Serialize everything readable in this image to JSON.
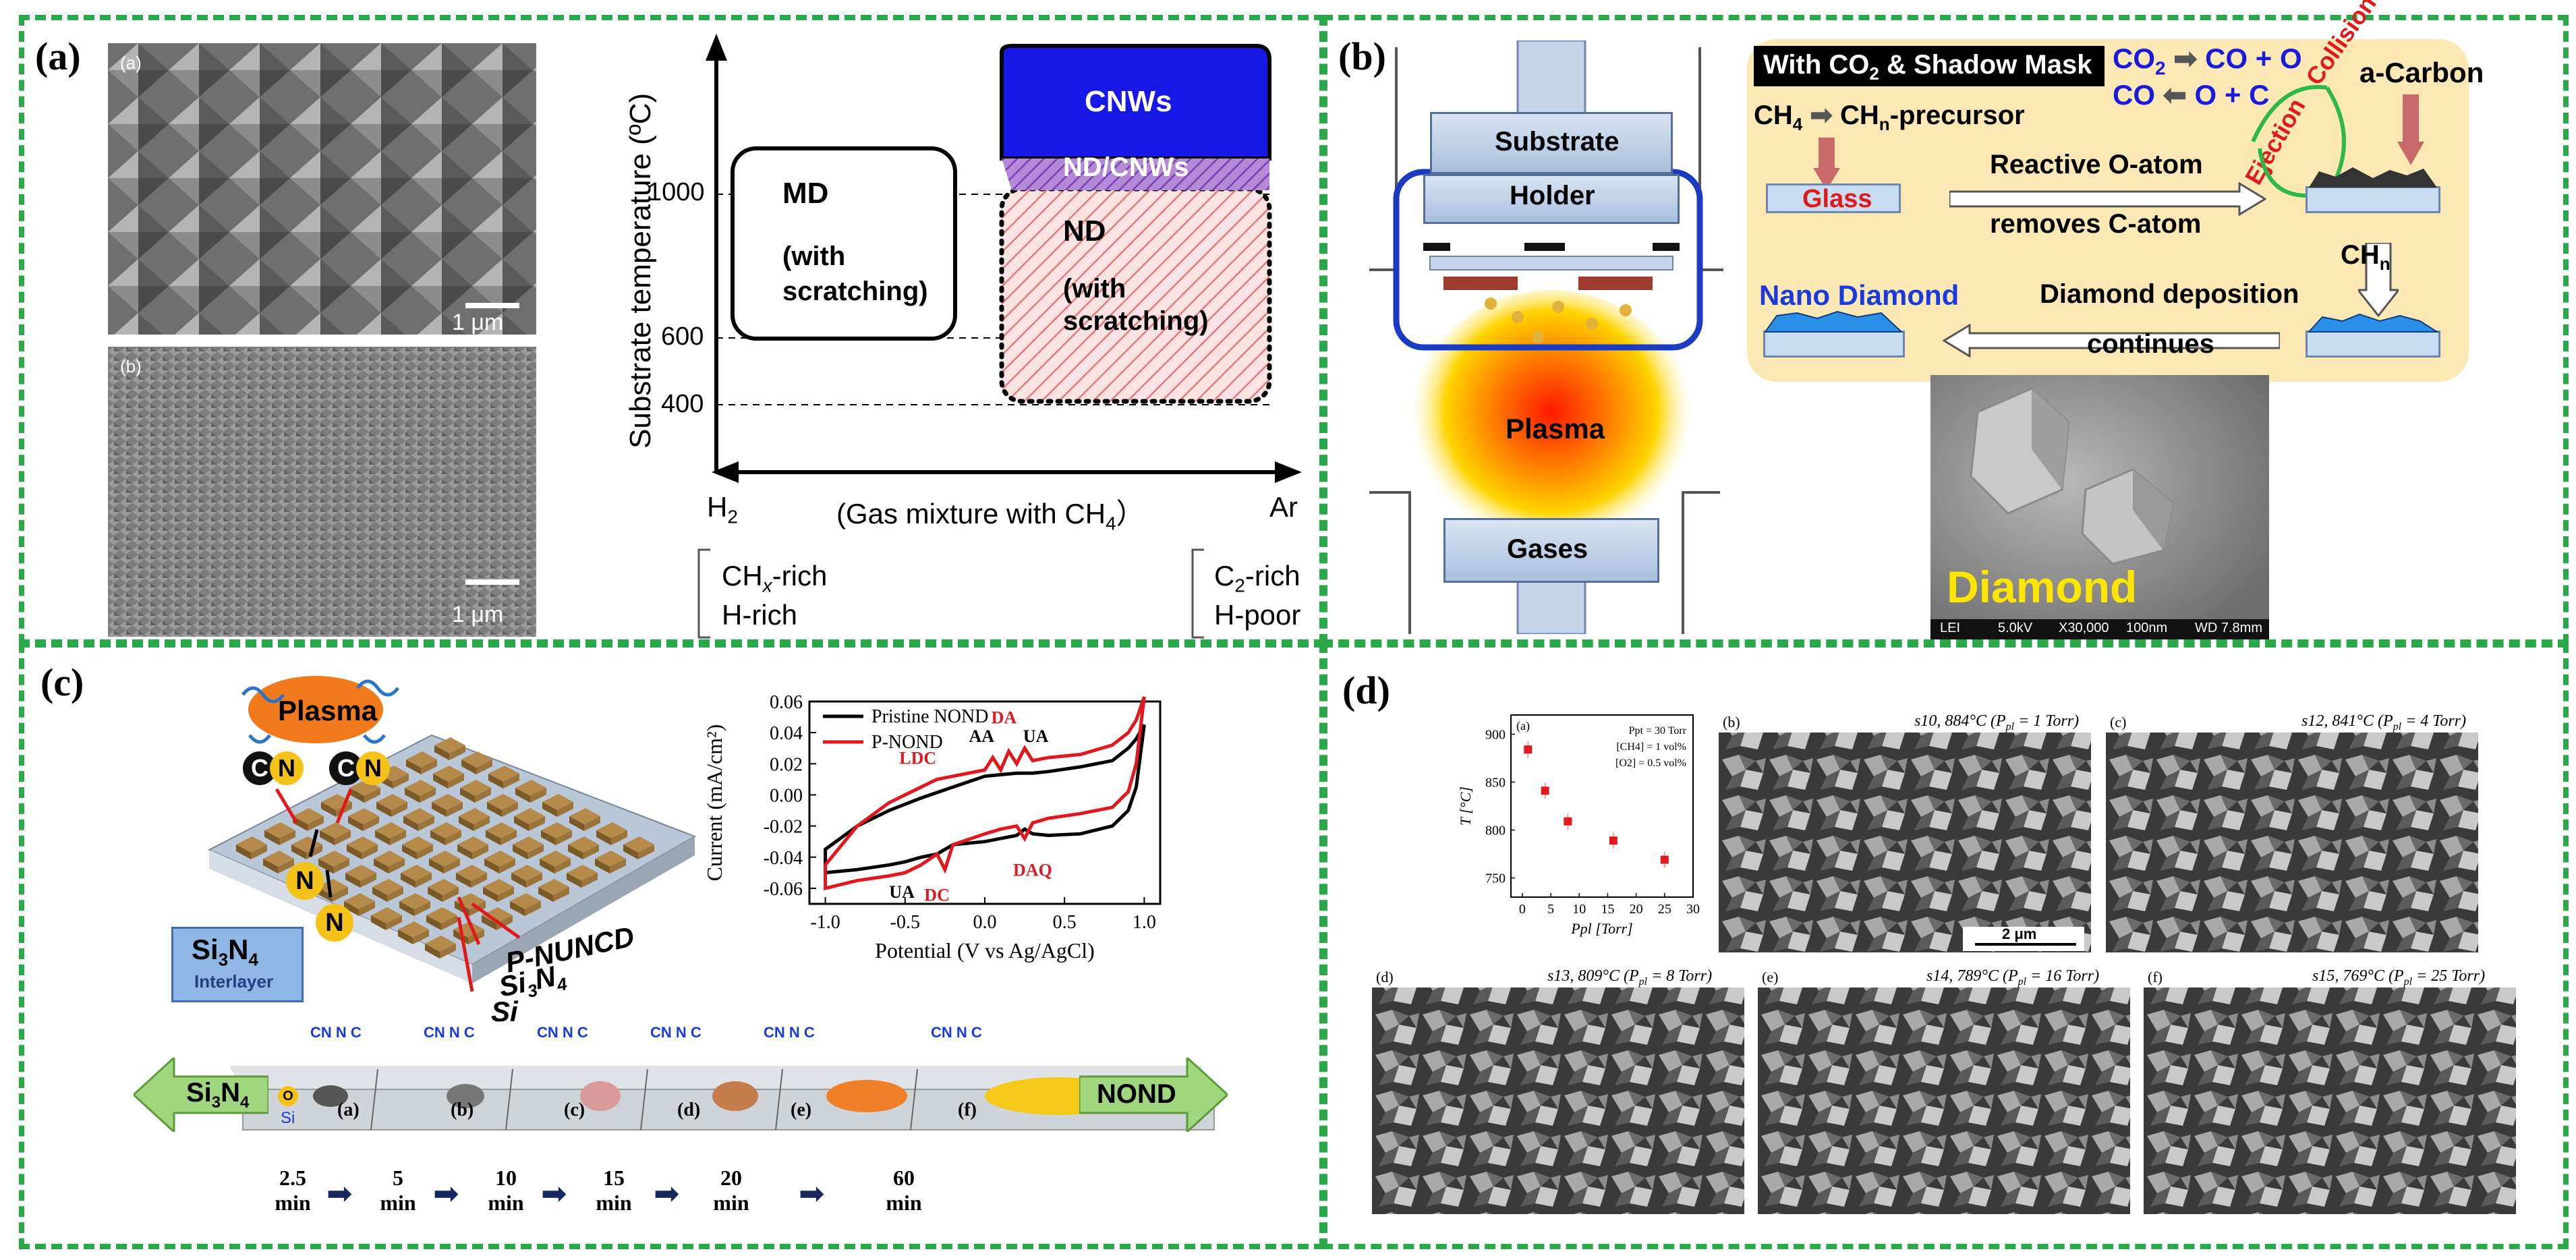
{
  "panels": {
    "a": {
      "label": "(a)",
      "sem_top_tag": "(a)",
      "sem_bottom_tag": "(b)",
      "scale_top": "1 μm",
      "scale_bottom": "1 μm",
      "y_axis_label": "Substrate temperature (ºC)",
      "y_ticks": [
        "1000",
        "600",
        "400"
      ],
      "x_left": "H",
      "x_left_sub": "2",
      "x_right": "Ar",
      "x_axis_label": "(Gas mixture with CH",
      "x_axis_label_sub": "4",
      "x_axis_label_end": "）",
      "md_title": "MD",
      "md_note_1": "(with",
      "md_note_2": "scratching)",
      "cnw": "CNWs",
      "ndcnw": "ND/CNWs",
      "nd_title": "ND",
      "nd_note_1": "(with",
      "nd_note_2": "scratching)",
      "left_bracket_1": "CH",
      "left_bracket_1_sub": "x",
      "left_bracket_1_end": "-rich",
      "left_bracket_2": "H-rich",
      "right_bracket_1": "C",
      "right_bracket_1_sub": "2",
      "right_bracket_1_end": "-rich",
      "right_bracket_2": "H-poor"
    },
    "b": {
      "label": "(b)",
      "substrate": "Substrate",
      "holder": "Holder",
      "plasma": "Plasma",
      "gases": "Gases",
      "mask_title": "With CO",
      "mask_title_sub": "2",
      "mask_title_end": " & Shadow Mask",
      "co2_line_a": "CO",
      "co2_line_a_sub": "2",
      "co2_line_b": "CO + O",
      "co_line_a": "CO",
      "co_line_b": "O + C",
      "collision": "Collision",
      "ejection": "Ejection",
      "acarbon": "a-Carbon",
      "ch4": "CH",
      "ch4_sub": "4",
      "chn_prec": "CH",
      "chn_prec_sub": "n",
      "chn_prec_end": "-precursor",
      "glass": "Glass",
      "reactive_1": "Reactive O-atom",
      "reactive_2": "removes C-atom",
      "chn": "CH",
      "chn_sub": "n",
      "nano": "Nano Diamond",
      "deposition_1": "Diamond deposition",
      "deposition_2": "continues",
      "diamond": "Diamond",
      "sem_footer": [
        "LEI",
        "5.0kV",
        "X30,000",
        "100nm",
        "WD 7.8mm"
      ]
    },
    "c": {
      "label": "(c)",
      "plasma": "Plasma",
      "atom_c": "C",
      "atom_n": "N",
      "si3n4": "Si",
      "si3n4_sub": "3",
      "si3n4_n": "N",
      "si3n4_n_sub": "4",
      "interlayer": "Interlayer",
      "layer_puncd": "P-NUNCD",
      "layer_si3n4": "Si",
      "layer_si3n4_sub": "3",
      "layer_si3n4_n": "N",
      "layer_si3n4_n_sub": "4",
      "layer_si": "Si",
      "strip_left": "Si",
      "strip_left_sub": "3",
      "strip_left_n": "N",
      "strip_left_n_sub": "4",
      "strip_right": "NOND",
      "strip_si": "Si",
      "strip_o": "O",
      "stages": [
        "(a)",
        "(b)",
        "(c)",
        "(d)",
        "(e)",
        "(f)"
      ],
      "times": [
        "2.5",
        "5",
        "10",
        "15",
        "20",
        "60"
      ],
      "time_unit": "min",
      "cv_labels": [
        "LDC",
        "AA",
        "DA",
        "UA",
        "UA",
        "DC",
        "DAQ"
      ],
      "cn_labels": [
        "CN",
        "N",
        "C"
      ]
    },
    "d": {
      "label": "(d)",
      "sem_b": "s10, 884°C (P",
      "sem_b_sub": "pl",
      "sem_b_end": " = 1 Torr)",
      "sem_c": "s12, 841°C (P",
      "sem_c_sub": "pl",
      "sem_c_end": " = 4 Torr)",
      "sem_d": "s13, 809°C (P",
      "sem_d_sub": "pl",
      "sem_d_end": " = 8 Torr)",
      "sem_e": "s14, 789°C (P",
      "sem_e_sub": "pl",
      "sem_e_end": " = 16 Torr)",
      "sem_f": "s15, 769°C (P",
      "sem_f_sub": "pl",
      "sem_f_end": " = 25 Torr)",
      "tag_b": "(b)",
      "tag_c": "(c)",
      "tag_d": "(d)",
      "tag_e": "(e)",
      "tag_f": "(f)",
      "scale": "2 μm"
    }
  },
  "chart_data": [
    {
      "type": "line",
      "title": "",
      "xlabel": "Potential (V vs Ag/AgCl)",
      "ylabel": "Current (mA/cm²)",
      "xlim": [
        -1.1,
        1.1
      ],
      "ylim": [
        -0.07,
        0.06
      ],
      "x_ticks": [
        "-1.0",
        "-0.5",
        "0.0",
        "0.5",
        "1.0"
      ],
      "y_ticks": [
        "0.06",
        "0.04",
        "0.02",
        "0.00",
        "-0.02",
        "-0.04",
        "-0.06"
      ],
      "legend": "top-left",
      "series": [
        {
          "name": "Pristine NOND",
          "color": "#000000",
          "x": [
            -1.0,
            -0.8,
            -0.6,
            -0.4,
            -0.2,
            0.0,
            0.1,
            0.2,
            0.3,
            0.4,
            0.6,
            0.8,
            0.9,
            0.95,
            1.0,
            0.95,
            0.9,
            0.8,
            0.6,
            0.4,
            0.3,
            0.25,
            0.2,
            0.1,
            0.0,
            -0.2,
            -0.3,
            -0.4,
            -0.5,
            -0.6,
            -0.8,
            -1.0
          ],
          "y": [
            -0.035,
            -0.02,
            -0.01,
            -0.002,
            0.005,
            0.012,
            0.013,
            0.014,
            0.014,
            0.015,
            0.018,
            0.022,
            0.03,
            0.036,
            0.045,
            0.005,
            -0.01,
            -0.02,
            -0.025,
            -0.026,
            -0.025,
            -0.022,
            -0.026,
            -0.028,
            -0.03,
            -0.032,
            -0.038,
            -0.04,
            -0.043,
            -0.045,
            -0.048,
            -0.05
          ]
        },
        {
          "name": "P-NOND",
          "color": "#e0191f",
          "x": [
            -1.0,
            -0.8,
            -0.6,
            -0.4,
            -0.3,
            -0.2,
            0.0,
            0.05,
            0.1,
            0.15,
            0.2,
            0.25,
            0.3,
            0.4,
            0.6,
            0.8,
            0.9,
            0.95,
            1.0,
            0.95,
            0.9,
            0.8,
            0.6,
            0.4,
            0.3,
            0.25,
            0.2,
            0.1,
            0.0,
            -0.2,
            -0.25,
            -0.3,
            -0.4,
            -0.5,
            -0.6,
            -0.8,
            -1.0
          ],
          "y": [
            -0.045,
            -0.02,
            -0.005,
            0.005,
            0.01,
            0.012,
            0.016,
            0.024,
            0.016,
            0.028,
            0.02,
            0.03,
            0.022,
            0.024,
            0.026,
            0.032,
            0.04,
            0.048,
            0.063,
            0.02,
            0.002,
            -0.008,
            -0.012,
            -0.015,
            -0.018,
            -0.028,
            -0.02,
            -0.022,
            -0.025,
            -0.032,
            -0.048,
            -0.038,
            -0.045,
            -0.05,
            -0.052,
            -0.055,
            -0.06
          ]
        }
      ]
    },
    {
      "type": "scatter",
      "title": "",
      "xlabel": "Ppl [Torr]",
      "ylabel": "T [°C]",
      "xlim": [
        -2,
        30
      ],
      "ylim": [
        730,
        920
      ],
      "x_ticks": [
        "0",
        "5",
        "10",
        "15",
        "20",
        "25",
        "30"
      ],
      "y_ticks": [
        "900",
        "850",
        "800",
        "750"
      ],
      "tag": "(a)",
      "legend": [
        "Ppt = 30 Torr",
        "[CH4] = 1 vol%",
        "[O2] = 0.5 vol%"
      ],
      "series": [
        {
          "name": "T",
          "color": "#e0191f",
          "x": [
            1,
            4,
            8,
            16,
            25
          ],
          "y": [
            884,
            841,
            809,
            789,
            769
          ]
        }
      ]
    }
  ]
}
